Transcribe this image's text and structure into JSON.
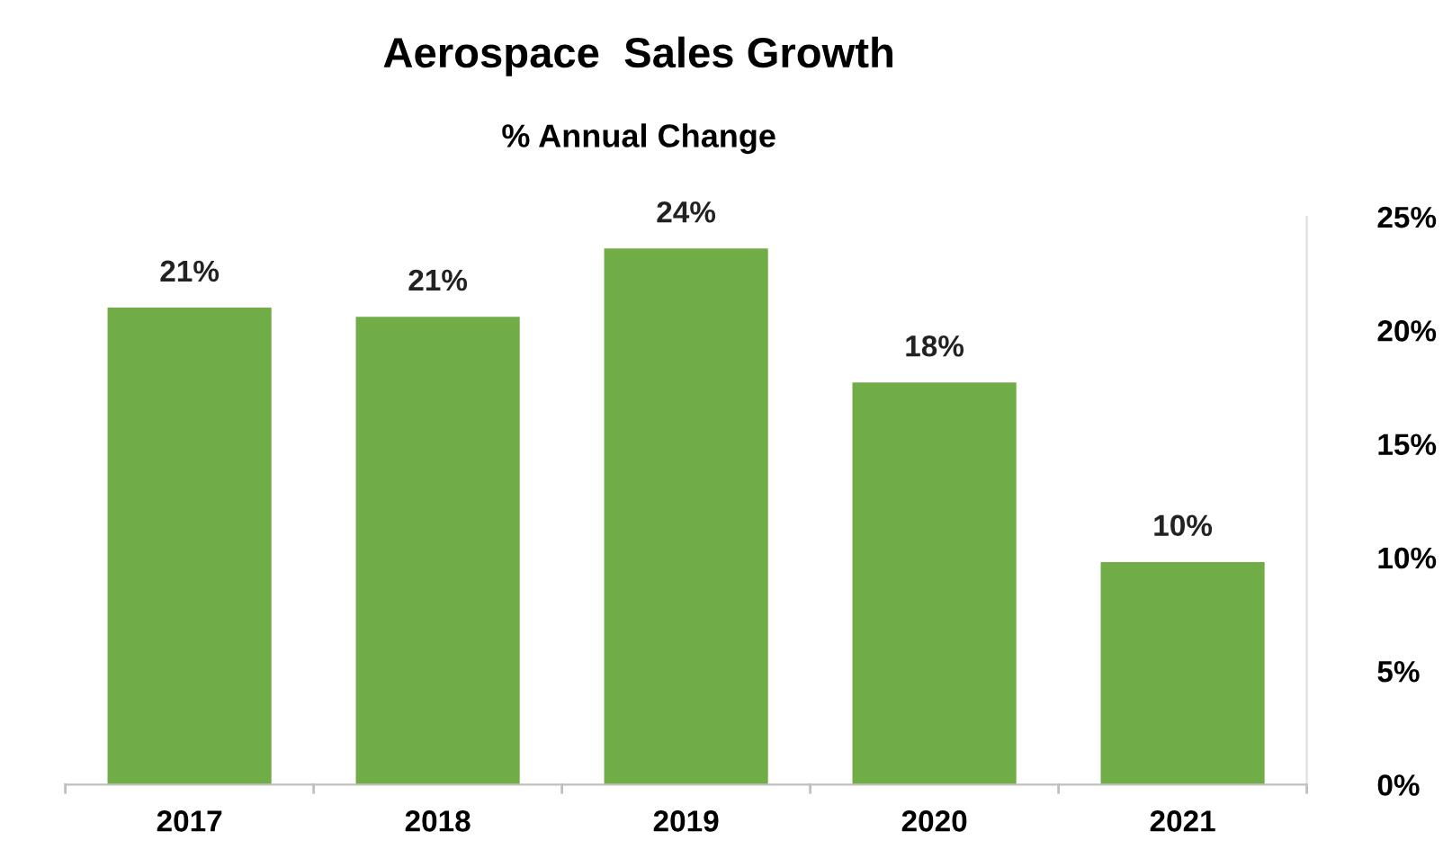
{
  "chart_data": {
    "type": "bar",
    "title": "Aerospace  Sales Growth",
    "subtitle": "% Annual Change",
    "categories": [
      "2017",
      "2018",
      "2019",
      "2020",
      "2021"
    ],
    "values": [
      21.0,
      20.6,
      23.6,
      17.7,
      9.8
    ],
    "value_labels": [
      "21%",
      "21%",
      "24%",
      "18%",
      "10%"
    ],
    "color": "#70ad47",
    "ylim": [
      0,
      25
    ],
    "yticks": [
      {
        "value": 0,
        "label": "0%"
      },
      {
        "value": 5,
        "label": "5%"
      },
      {
        "value": 10,
        "label": "10%"
      },
      {
        "value": 15,
        "label": "15%"
      },
      {
        "value": 20,
        "label": "20%"
      },
      {
        "value": 25,
        "label": "25%"
      }
    ],
    "grid": false,
    "legend": false
  }
}
